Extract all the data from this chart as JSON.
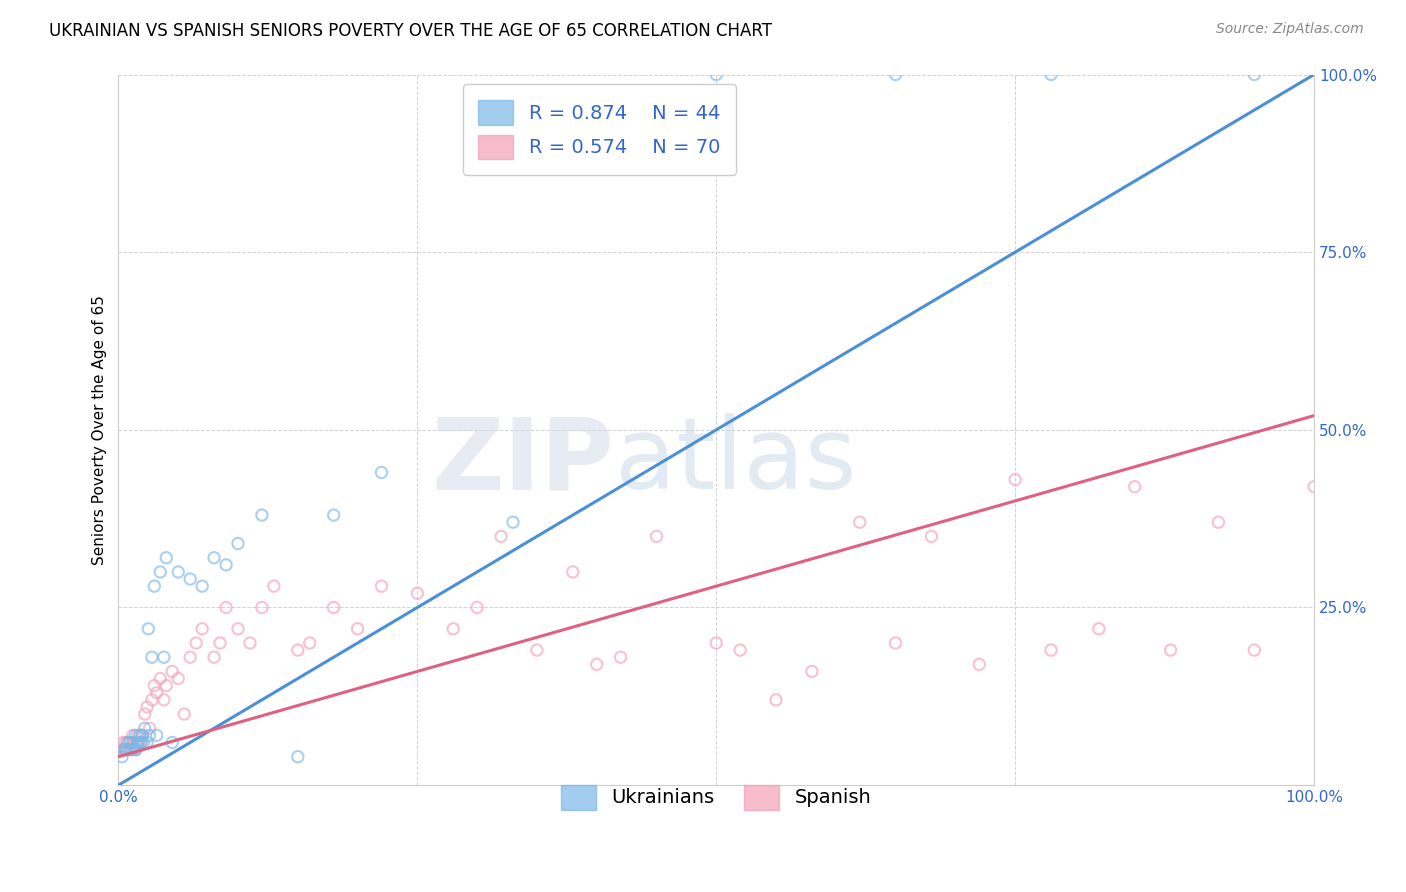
{
  "title": "UKRAINIAN VS SPANISH SENIORS POVERTY OVER THE AGE OF 65 CORRELATION CHART",
  "source": "Source: ZipAtlas.com",
  "ylabel": "Seniors Poverty Over the Age of 65",
  "xlim": [
    0,
    1
  ],
  "ylim": [
    0,
    1
  ],
  "xticks": [
    0,
    0.25,
    0.5,
    0.75,
    1.0
  ],
  "yticks": [
    0,
    0.25,
    0.5,
    0.75,
    1.0
  ],
  "xticklabels": [
    "0.0%",
    "",
    "",
    "",
    "100.0%"
  ],
  "yticklabels": [
    "",
    "25.0%",
    "50.0%",
    "75.0%",
    "100.0%"
  ],
  "background_color": "#ffffff",
  "grid_color": "#cccccc",
  "watermark_zip": "ZIP",
  "watermark_atlas": "atlas",
  "ukrainians_color": "#7bb8e8",
  "spanish_color": "#f5a0b5",
  "ukrainian_line_color": "#4a90d9",
  "spanish_line_color": "#e06080",
  "legend_color": "#3366cc",
  "legend_R_ukrainian": "R = 0.874",
  "legend_N_ukrainian": "N = 44",
  "legend_R_spanish": "R = 0.574",
  "legend_N_spanish": "N = 70",
  "uk_line_x0": 0.0,
  "uk_line_y0": 0.0,
  "uk_line_x1": 1.0,
  "uk_line_y1": 1.0,
  "sp_line_x0": 0.0,
  "sp_line_y0": 0.04,
  "sp_line_x1": 1.0,
  "sp_line_y1": 0.52,
  "title_fontsize": 12,
  "source_fontsize": 10,
  "axis_label_fontsize": 11,
  "tick_fontsize": 11,
  "legend_fontsize": 14,
  "marker_size": 55,
  "line_width": 2.2,
  "marker_alpha": 0.55,
  "marker_linewidth": 1.5,
  "ukrainians_x": [
    0.003,
    0.005,
    0.006,
    0.007,
    0.008,
    0.009,
    0.01,
    0.011,
    0.012,
    0.013,
    0.014,
    0.015,
    0.016,
    0.017,
    0.018,
    0.019,
    0.02,
    0.021,
    0.022,
    0.024,
    0.025,
    0.026,
    0.028,
    0.03,
    0.032,
    0.035,
    0.038,
    0.04,
    0.045,
    0.05,
    0.06,
    0.07,
    0.08,
    0.09,
    0.1,
    0.12,
    0.15,
    0.18,
    0.22,
    0.33,
    0.5,
    0.65,
    0.78,
    0.95
  ],
  "ukrainians_y": [
    0.04,
    0.05,
    0.05,
    0.05,
    0.06,
    0.05,
    0.06,
    0.05,
    0.06,
    0.05,
    0.07,
    0.05,
    0.06,
    0.06,
    0.07,
    0.06,
    0.07,
    0.06,
    0.08,
    0.06,
    0.22,
    0.07,
    0.18,
    0.28,
    0.07,
    0.3,
    0.18,
    0.32,
    0.06,
    0.3,
    0.29,
    0.28,
    0.32,
    0.31,
    0.34,
    0.38,
    0.04,
    0.38,
    0.44,
    0.37,
    1.0,
    1.0,
    1.0,
    1.0
  ],
  "spanish_x": [
    0.003,
    0.004,
    0.005,
    0.006,
    0.007,
    0.008,
    0.009,
    0.01,
    0.011,
    0.012,
    0.013,
    0.014,
    0.015,
    0.016,
    0.017,
    0.018,
    0.019,
    0.02,
    0.022,
    0.024,
    0.026,
    0.028,
    0.03,
    0.032,
    0.035,
    0.038,
    0.04,
    0.045,
    0.05,
    0.055,
    0.06,
    0.065,
    0.07,
    0.08,
    0.085,
    0.09,
    0.1,
    0.11,
    0.12,
    0.13,
    0.15,
    0.16,
    0.18,
    0.2,
    0.22,
    0.25,
    0.28,
    0.3,
    0.32,
    0.35,
    0.38,
    0.4,
    0.42,
    0.45,
    0.5,
    0.52,
    0.55,
    0.58,
    0.62,
    0.65,
    0.68,
    0.72,
    0.75,
    0.78,
    0.82,
    0.85,
    0.88,
    0.92,
    0.95,
    1.0
  ],
  "spanish_y": [
    0.05,
    0.06,
    0.05,
    0.06,
    0.05,
    0.06,
    0.05,
    0.06,
    0.05,
    0.07,
    0.06,
    0.05,
    0.06,
    0.07,
    0.06,
    0.07,
    0.06,
    0.07,
    0.1,
    0.11,
    0.08,
    0.12,
    0.14,
    0.13,
    0.15,
    0.12,
    0.14,
    0.16,
    0.15,
    0.1,
    0.18,
    0.2,
    0.22,
    0.18,
    0.2,
    0.25,
    0.22,
    0.2,
    0.25,
    0.28,
    0.19,
    0.2,
    0.25,
    0.22,
    0.28,
    0.27,
    0.22,
    0.25,
    0.35,
    0.19,
    0.3,
    0.17,
    0.18,
    0.35,
    0.2,
    0.19,
    0.12,
    0.16,
    0.37,
    0.2,
    0.35,
    0.17,
    0.43,
    0.19,
    0.22,
    0.42,
    0.19,
    0.37,
    0.19,
    0.42
  ]
}
